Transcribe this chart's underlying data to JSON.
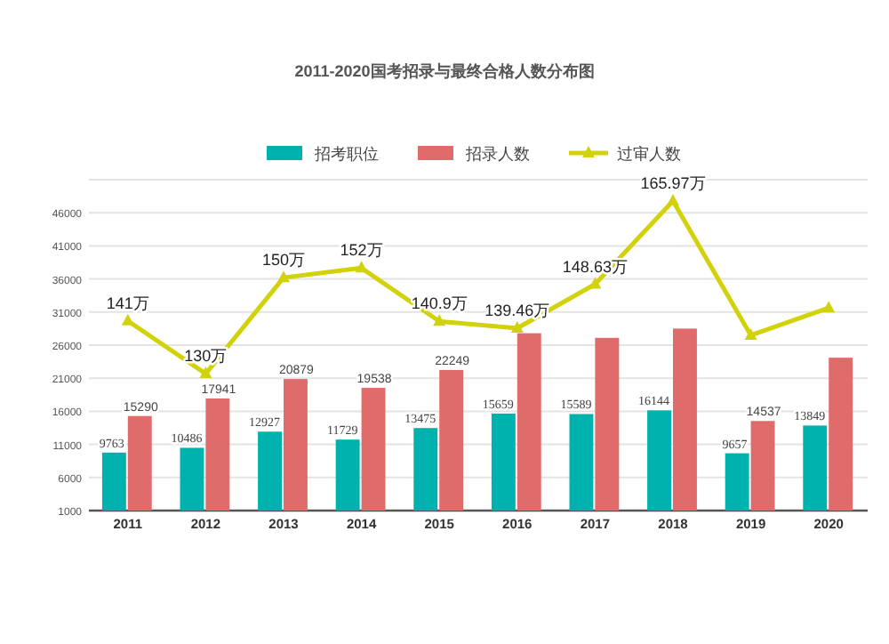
{
  "chart_data": {
    "type": "bar",
    "title": "2011-2020国考招录与最终合格人数分布图",
    "categories": [
      "2011",
      "2012",
      "2013",
      "2014",
      "2015",
      "2016",
      "2017",
      "2018",
      "2019",
      "2020"
    ],
    "series": [
      {
        "name": "招考职位",
        "color": "#00b2ae",
        "values": [
          9763,
          10486,
          12927,
          11729,
          13475,
          15659,
          15589,
          16144,
          9657,
          13849
        ],
        "value_labels": [
          "9763",
          "10486",
          "12927",
          "11729",
          "13475",
          "15659",
          "15589",
          "16144",
          "9657",
          "13849"
        ]
      },
      {
        "name": "招录人数",
        "color": "#e06b6b",
        "values": [
          15290,
          17941,
          20879,
          19538,
          22249,
          27800,
          27100,
          28500,
          14537,
          24100
        ],
        "value_labels": [
          "15290",
          "17941",
          "20879",
          "19538",
          "22249",
          null,
          null,
          null,
          "14537",
          null
        ]
      },
      {
        "name": "过审人数",
        "type": "line",
        "axis": "y2",
        "color": "#d2d20c",
        "marker": "triangle",
        "values": [
          141,
          130,
          150,
          152,
          140.9,
          139.46,
          148.63,
          165.97,
          138,
          143.7
        ],
        "value_labels": [
          "141万",
          "130万",
          "150万",
          "152万",
          "140.9万",
          "139.46万",
          "148.63万",
          "165.97万",
          null,
          null
        ]
      }
    ],
    "ylim": [
      1000,
      51000
    ],
    "yticks": [
      1000,
      6000,
      11000,
      16000,
      21000,
      26000,
      31000,
      36000,
      41000,
      46000,
      {
        "value": 51000,
        "label": null
      }
    ],
    "y2lim": [
      101.5,
      170.4
    ],
    "tick_labels": "xy",
    "grid": "y",
    "legend": "top"
  }
}
